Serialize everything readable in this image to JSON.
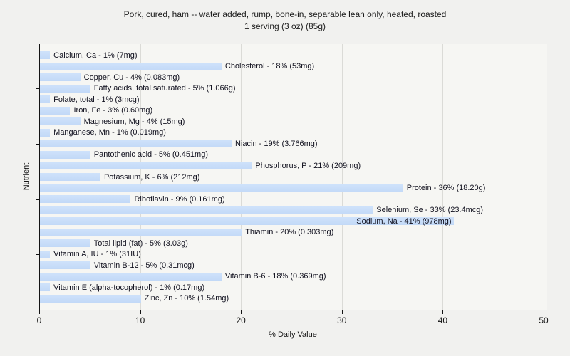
{
  "title": {
    "line1": "Pork, cured, ham -- water added, rump, bone-in, separable lean only, heated, roasted",
    "line2": "1 serving (3 oz) (85g)"
  },
  "chart_data": {
    "type": "bar",
    "orientation": "horizontal",
    "title": "Pork, cured, ham -- water added, rump, bone-in, separable lean only, heated, roasted",
    "subtitle": "1 serving (3 oz) (85g)",
    "xlabel": "% Daily Value",
    "ylabel": "Nutrient",
    "xlim": [
      0,
      50
    ],
    "x_ticks": [
      0,
      10,
      20,
      30,
      40,
      50
    ],
    "y_unit_ticks": [
      0,
      5,
      10,
      15,
      20
    ],
    "grid": "vertical gridlines at x ticks, no legend",
    "legend_position": "none",
    "colors": {
      "figure_background": "#f1f1ef",
      "plot_background": "#f6f6f3",
      "bar_fill_top": "#cfe2fb",
      "bar_fill_bottom": "#c2d9f7",
      "gridline": "#dbdbd7",
      "axis_line": "#141414",
      "label_text": "#10101e"
    },
    "items": [
      {
        "name": "Calcium, Ca",
        "percent": 1,
        "amount": "7mg",
        "label": "Calcium, Ca - 1% (7mg)",
        "label_inside": false
      },
      {
        "name": "Cholesterol",
        "percent": 18,
        "amount": "53mg",
        "label": "Cholesterol - 18% (53mg)",
        "label_inside": false
      },
      {
        "name": "Copper, Cu",
        "percent": 4,
        "amount": "0.083mg",
        "label": "Copper, Cu - 4% (0.083mg)",
        "label_inside": false
      },
      {
        "name": "Fatty acids, total saturated",
        "percent": 5,
        "amount": "1.066g",
        "label": "Fatty acids, total saturated - 5% (1.066g)",
        "label_inside": false
      },
      {
        "name": "Folate, total",
        "percent": 1,
        "amount": "3mcg",
        "label": "Folate, total - 1% (3mcg)",
        "label_inside": false
      },
      {
        "name": "Iron, Fe",
        "percent": 3,
        "amount": "0.60mg",
        "label": "Iron, Fe - 3% (0.60mg)",
        "label_inside": false
      },
      {
        "name": "Magnesium, Mg",
        "percent": 4,
        "amount": "15mg",
        "label": "Magnesium, Mg - 4% (15mg)",
        "label_inside": false
      },
      {
        "name": "Manganese, Mn",
        "percent": 1,
        "amount": "0.019mg",
        "label": "Manganese, Mn - 1% (0.019mg)",
        "label_inside": false
      },
      {
        "name": "Niacin",
        "percent": 19,
        "amount": "3.766mg",
        "label": "Niacin - 19% (3.766mg)",
        "label_inside": false
      },
      {
        "name": "Pantothenic acid",
        "percent": 5,
        "amount": "0.451mg",
        "label": "Pantothenic acid - 5% (0.451mg)",
        "label_inside": false
      },
      {
        "name": "Phosphorus, P",
        "percent": 21,
        "amount": "209mg",
        "label": "Phosphorus, P - 21% (209mg)",
        "label_inside": false
      },
      {
        "name": "Potassium, K",
        "percent": 6,
        "amount": "212mg",
        "label": "Potassium, K - 6% (212mg)",
        "label_inside": false
      },
      {
        "name": "Protein",
        "percent": 36,
        "amount": "18.20g",
        "label": "Protein - 36% (18.20g)",
        "label_inside": false
      },
      {
        "name": "Riboflavin",
        "percent": 9,
        "amount": "0.161mg",
        "label": "Riboflavin - 9% (0.161mg)",
        "label_inside": false
      },
      {
        "name": "Selenium, Se",
        "percent": 33,
        "amount": "23.4mcg",
        "label": "Selenium, Se - 33% (23.4mcg)",
        "label_inside": false
      },
      {
        "name": "Sodium, Na",
        "percent": 41,
        "amount": "978mg",
        "label": "Sodium, Na - 41% (978mg)",
        "label_inside": true
      },
      {
        "name": "Thiamin",
        "percent": 20,
        "amount": "0.303mg",
        "label": "Thiamin - 20% (0.303mg)",
        "label_inside": false
      },
      {
        "name": "Total lipid (fat)",
        "percent": 5,
        "amount": "3.03g",
        "label": "Total lipid (fat) - 5% (3.03g)",
        "label_inside": false
      },
      {
        "name": "Vitamin A, IU",
        "percent": 1,
        "amount": "31IU",
        "label": "Vitamin A, IU - 1% (31IU)",
        "label_inside": false
      },
      {
        "name": "Vitamin B-12",
        "percent": 5,
        "amount": "0.31mcg",
        "label": "Vitamin B-12 - 5% (0.31mcg)",
        "label_inside": false
      },
      {
        "name": "Vitamin B-6",
        "percent": 18,
        "amount": "0.369mg",
        "label": "Vitamin B-6 - 18% (0.369mg)",
        "label_inside": false
      },
      {
        "name": "Vitamin E (alpha-tocopherol)",
        "percent": 1,
        "amount": "0.17mg",
        "label": "Vitamin E (alpha-tocopherol) - 1% (0.17mg)",
        "label_inside": false
      },
      {
        "name": "Zinc, Zn",
        "percent": 10,
        "amount": "1.54mg",
        "label": "Zinc, Zn - 10% (1.54mg)",
        "label_inside": false
      }
    ]
  }
}
